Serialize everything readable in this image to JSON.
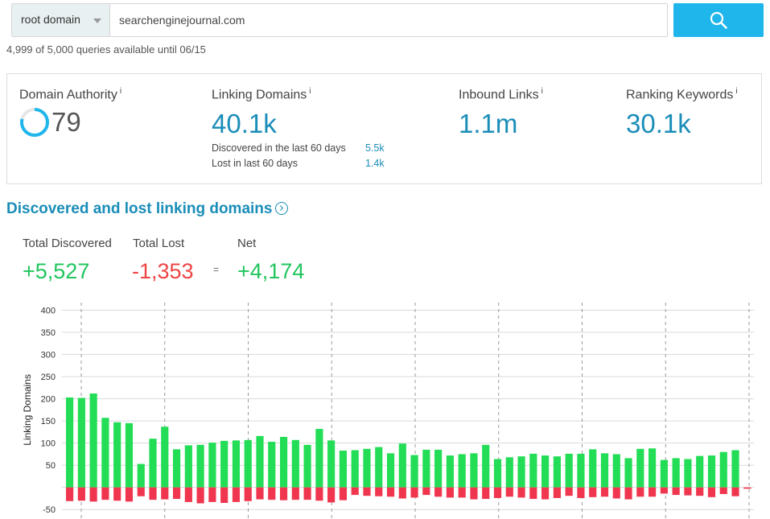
{
  "search": {
    "scope": "root domain",
    "query": "searchenginejournal.com"
  },
  "quota": "4,999 of 5,000 queries available until 06/15",
  "metrics": {
    "domain_authority": {
      "label": "Domain Authority",
      "info": "i",
      "value": "79",
      "ring_fraction": 0.79
    },
    "linking_domains": {
      "label": "Linking Domains",
      "info": "i",
      "value": "40.1k",
      "discovered_label": "Discovered in the last 60 days",
      "discovered_value": "5.5k",
      "lost_label": "Lost in last 60 days",
      "lost_value": "1.4k"
    },
    "inbound_links": {
      "label": "Inbound Links",
      "info": "i",
      "value": "1.1m"
    },
    "ranking_keywords": {
      "label": "Ranking Keywords",
      "info": "i",
      "value": "30.1k"
    }
  },
  "section": {
    "title": "Discovered and lost linking domains",
    "total_discovered_label": "Total Discovered",
    "total_discovered": "+5,527",
    "total_lost_label": "Total Lost",
    "total_lost": "-1,353",
    "equals": "=",
    "net_label": "Net",
    "net": "+4,174"
  },
  "colors": {
    "accent": "#1a8db8",
    "search_button": "#1fb6ec",
    "gained": "#22dd55",
    "lost": "#f0364f"
  },
  "chart_data": {
    "type": "bar",
    "ylabel": "Linking Domains",
    "ylim": [
      -55,
      410
    ],
    "yticks": [
      400,
      350,
      300,
      250,
      200,
      150,
      100,
      50,
      -50
    ],
    "grid": true,
    "series": [
      {
        "values": [
          203,
          202,
          212,
          157,
          147,
          145,
          53,
          110,
          137,
          86,
          95,
          96,
          101,
          105,
          106,
          107,
          116,
          103,
          114,
          107,
          96,
          132,
          106,
          83,
          84,
          87,
          91,
          77,
          99,
          73,
          85,
          85,
          72,
          75,
          77,
          96,
          64,
          68,
          70,
          76,
          72,
          70,
          76,
          76,
          86,
          77,
          75,
          66,
          87,
          88,
          62,
          66,
          64,
          71,
          72,
          80,
          84,
          0
        ]
      },
      {
        "values": [
          -31,
          -30,
          -32,
          -28,
          -30,
          -32,
          -20,
          -28,
          -27,
          -26,
          -33,
          -36,
          -33,
          -35,
          -33,
          -31,
          -27,
          -28,
          -29,
          -28,
          -28,
          -30,
          -34,
          -29,
          -17,
          -19,
          -20,
          -21,
          -25,
          -23,
          -17,
          -21,
          -23,
          -23,
          -27,
          -26,
          -24,
          -21,
          -23,
          -26,
          -27,
          -24,
          -19,
          -24,
          -22,
          -21,
          -25,
          -27,
          -21,
          -21,
          -14,
          -17,
          -18,
          -19,
          -22,
          -15,
          -20,
          -3
        ]
      }
    ],
    "x_divisions": 8
  }
}
